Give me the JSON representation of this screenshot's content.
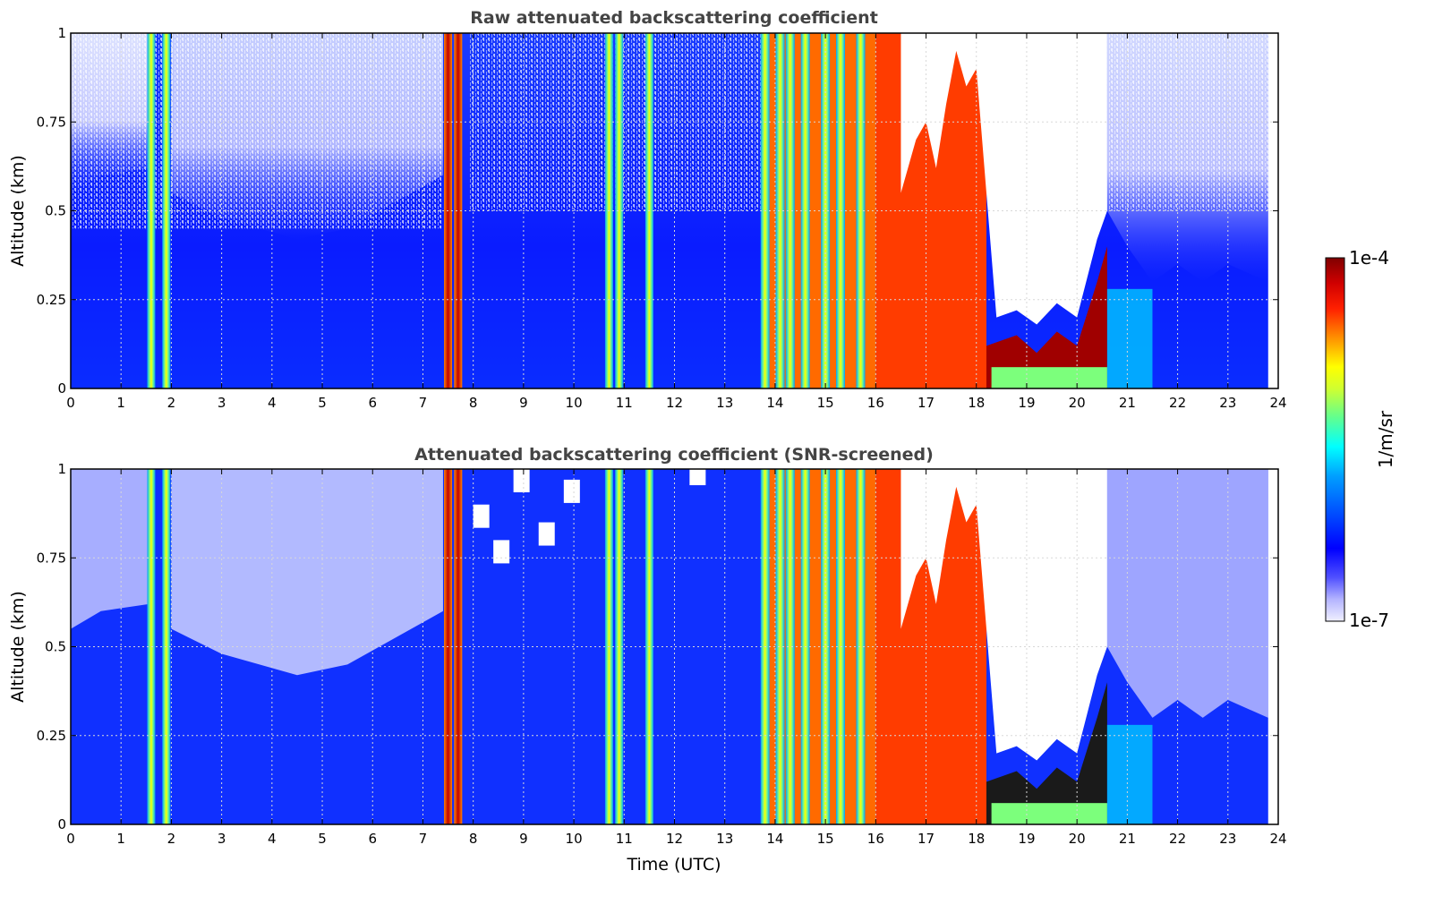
{
  "chart_data": [
    {
      "type": "heatmap",
      "title": "Raw attenuated backscattering coefficient",
      "ylabel": "Altitude (km)",
      "xlabel": "",
      "xlim": [
        0,
        24
      ],
      "ylim": [
        0,
        1
      ],
      "x_ticks": [
        "0",
        "1",
        "2",
        "3",
        "4",
        "5",
        "6",
        "7",
        "8",
        "9",
        "10",
        "11",
        "12",
        "13",
        "14",
        "15",
        "16",
        "17",
        "18",
        "19",
        "20",
        "21",
        "22",
        "23",
        "24"
      ],
      "y_ticks": [
        "0",
        "0.25",
        "0.5",
        "0.75",
        "1"
      ],
      "grid": true,
      "colorscale": "jet (log)",
      "cloud_top_km": [
        [
          16.5,
          0.55
        ],
        [
          16.8,
          0.7
        ],
        [
          17.0,
          0.75
        ],
        [
          17.2,
          0.62
        ],
        [
          17.4,
          0.8
        ],
        [
          17.6,
          0.95
        ],
        [
          17.8,
          0.85
        ],
        [
          18.0,
          0.9
        ],
        [
          18.4,
          0.2
        ],
        [
          18.8,
          0.22
        ],
        [
          19.2,
          0.18
        ],
        [
          19.6,
          0.24
        ],
        [
          20.0,
          0.2
        ],
        [
          20.4,
          0.42
        ],
        [
          20.6,
          0.5
        ]
      ],
      "fog_columns_utc": [
        1.6,
        1.9,
        7.5,
        7.7,
        10.7,
        10.9,
        11.5,
        13.8,
        14.1,
        14.3,
        14.6,
        15.0,
        15.3,
        15.7
      ]
    },
    {
      "type": "heatmap",
      "title": "Attenuated backscattering coefficient (SNR-screened)",
      "ylabel": "Altitude (km)",
      "xlabel": "Time (UTC)",
      "xlim": [
        0,
        24
      ],
      "ylim": [
        0,
        1
      ],
      "x_ticks": [
        "0",
        "1",
        "2",
        "3",
        "4",
        "5",
        "6",
        "7",
        "8",
        "9",
        "10",
        "11",
        "12",
        "13",
        "14",
        "15",
        "16",
        "17",
        "18",
        "19",
        "20",
        "21",
        "22",
        "23",
        "24"
      ],
      "y_ticks": [
        "0",
        "0.25",
        "0.5",
        "0.75",
        "1"
      ],
      "grid": true,
      "colorscale": "jet (log)"
    }
  ],
  "colorbar": {
    "label": "1/m/sr",
    "max_label": "1e-4",
    "min_label": "1e-7",
    "colors": [
      "#f0f0ff",
      "#c8c8ff",
      "#8c8cff",
      "#4646ff",
      "#0000ff",
      "#0040ff",
      "#0080ff",
      "#00c0ff",
      "#00ffff",
      "#40ffc0",
      "#80ff80",
      "#c0ff40",
      "#ffff00",
      "#ffc000",
      "#ff8000",
      "#ff4000",
      "#ff0000",
      "#c00000",
      "#800000"
    ]
  }
}
